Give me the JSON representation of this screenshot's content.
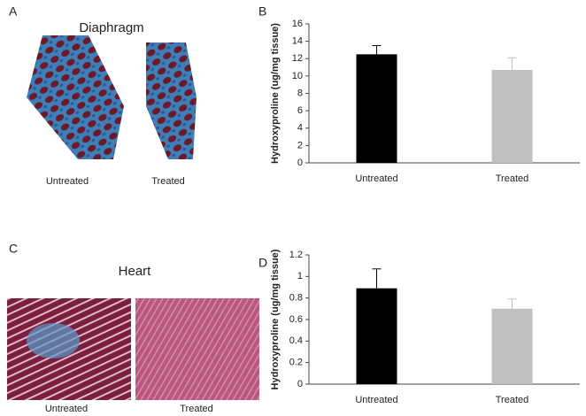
{
  "figure": {
    "panel_labels": [
      "A",
      "B",
      "C",
      "D"
    ],
    "images": [
      {
        "title": "Diaphragm",
        "captions": [
          "Untreated",
          "Treated"
        ]
      },
      {
        "title": "Heart",
        "captions": [
          "Untreated",
          "Treated"
        ]
      }
    ]
  },
  "chart_data": [
    {
      "type": "bar",
      "ylabel": "Hydroxyproline (ug/mg tissue)",
      "categories": [
        "Untreated",
        "Treated"
      ],
      "values": [
        12.5,
        10.7
      ],
      "errors": [
        1.0,
        1.4
      ],
      "colors": [
        "#000000",
        "#bfbfbf"
      ],
      "ylim": [
        0,
        16
      ],
      "yticks": [
        0,
        2,
        4,
        6,
        8,
        10,
        12,
        14,
        16
      ],
      "grid": false
    },
    {
      "type": "bar",
      "ylabel": "Hydroxyproline (ug/mg tissue)",
      "categories": [
        "Untreated",
        "Treated"
      ],
      "values": [
        0.89,
        0.7
      ],
      "errors": [
        0.18,
        0.09
      ],
      "colors": [
        "#000000",
        "#bfbfbf"
      ],
      "ylim": [
        0,
        1.2
      ],
      "yticks": [
        0,
        0.2,
        0.4,
        0.6,
        0.8,
        1,
        1.2
      ],
      "grid": false
    }
  ]
}
